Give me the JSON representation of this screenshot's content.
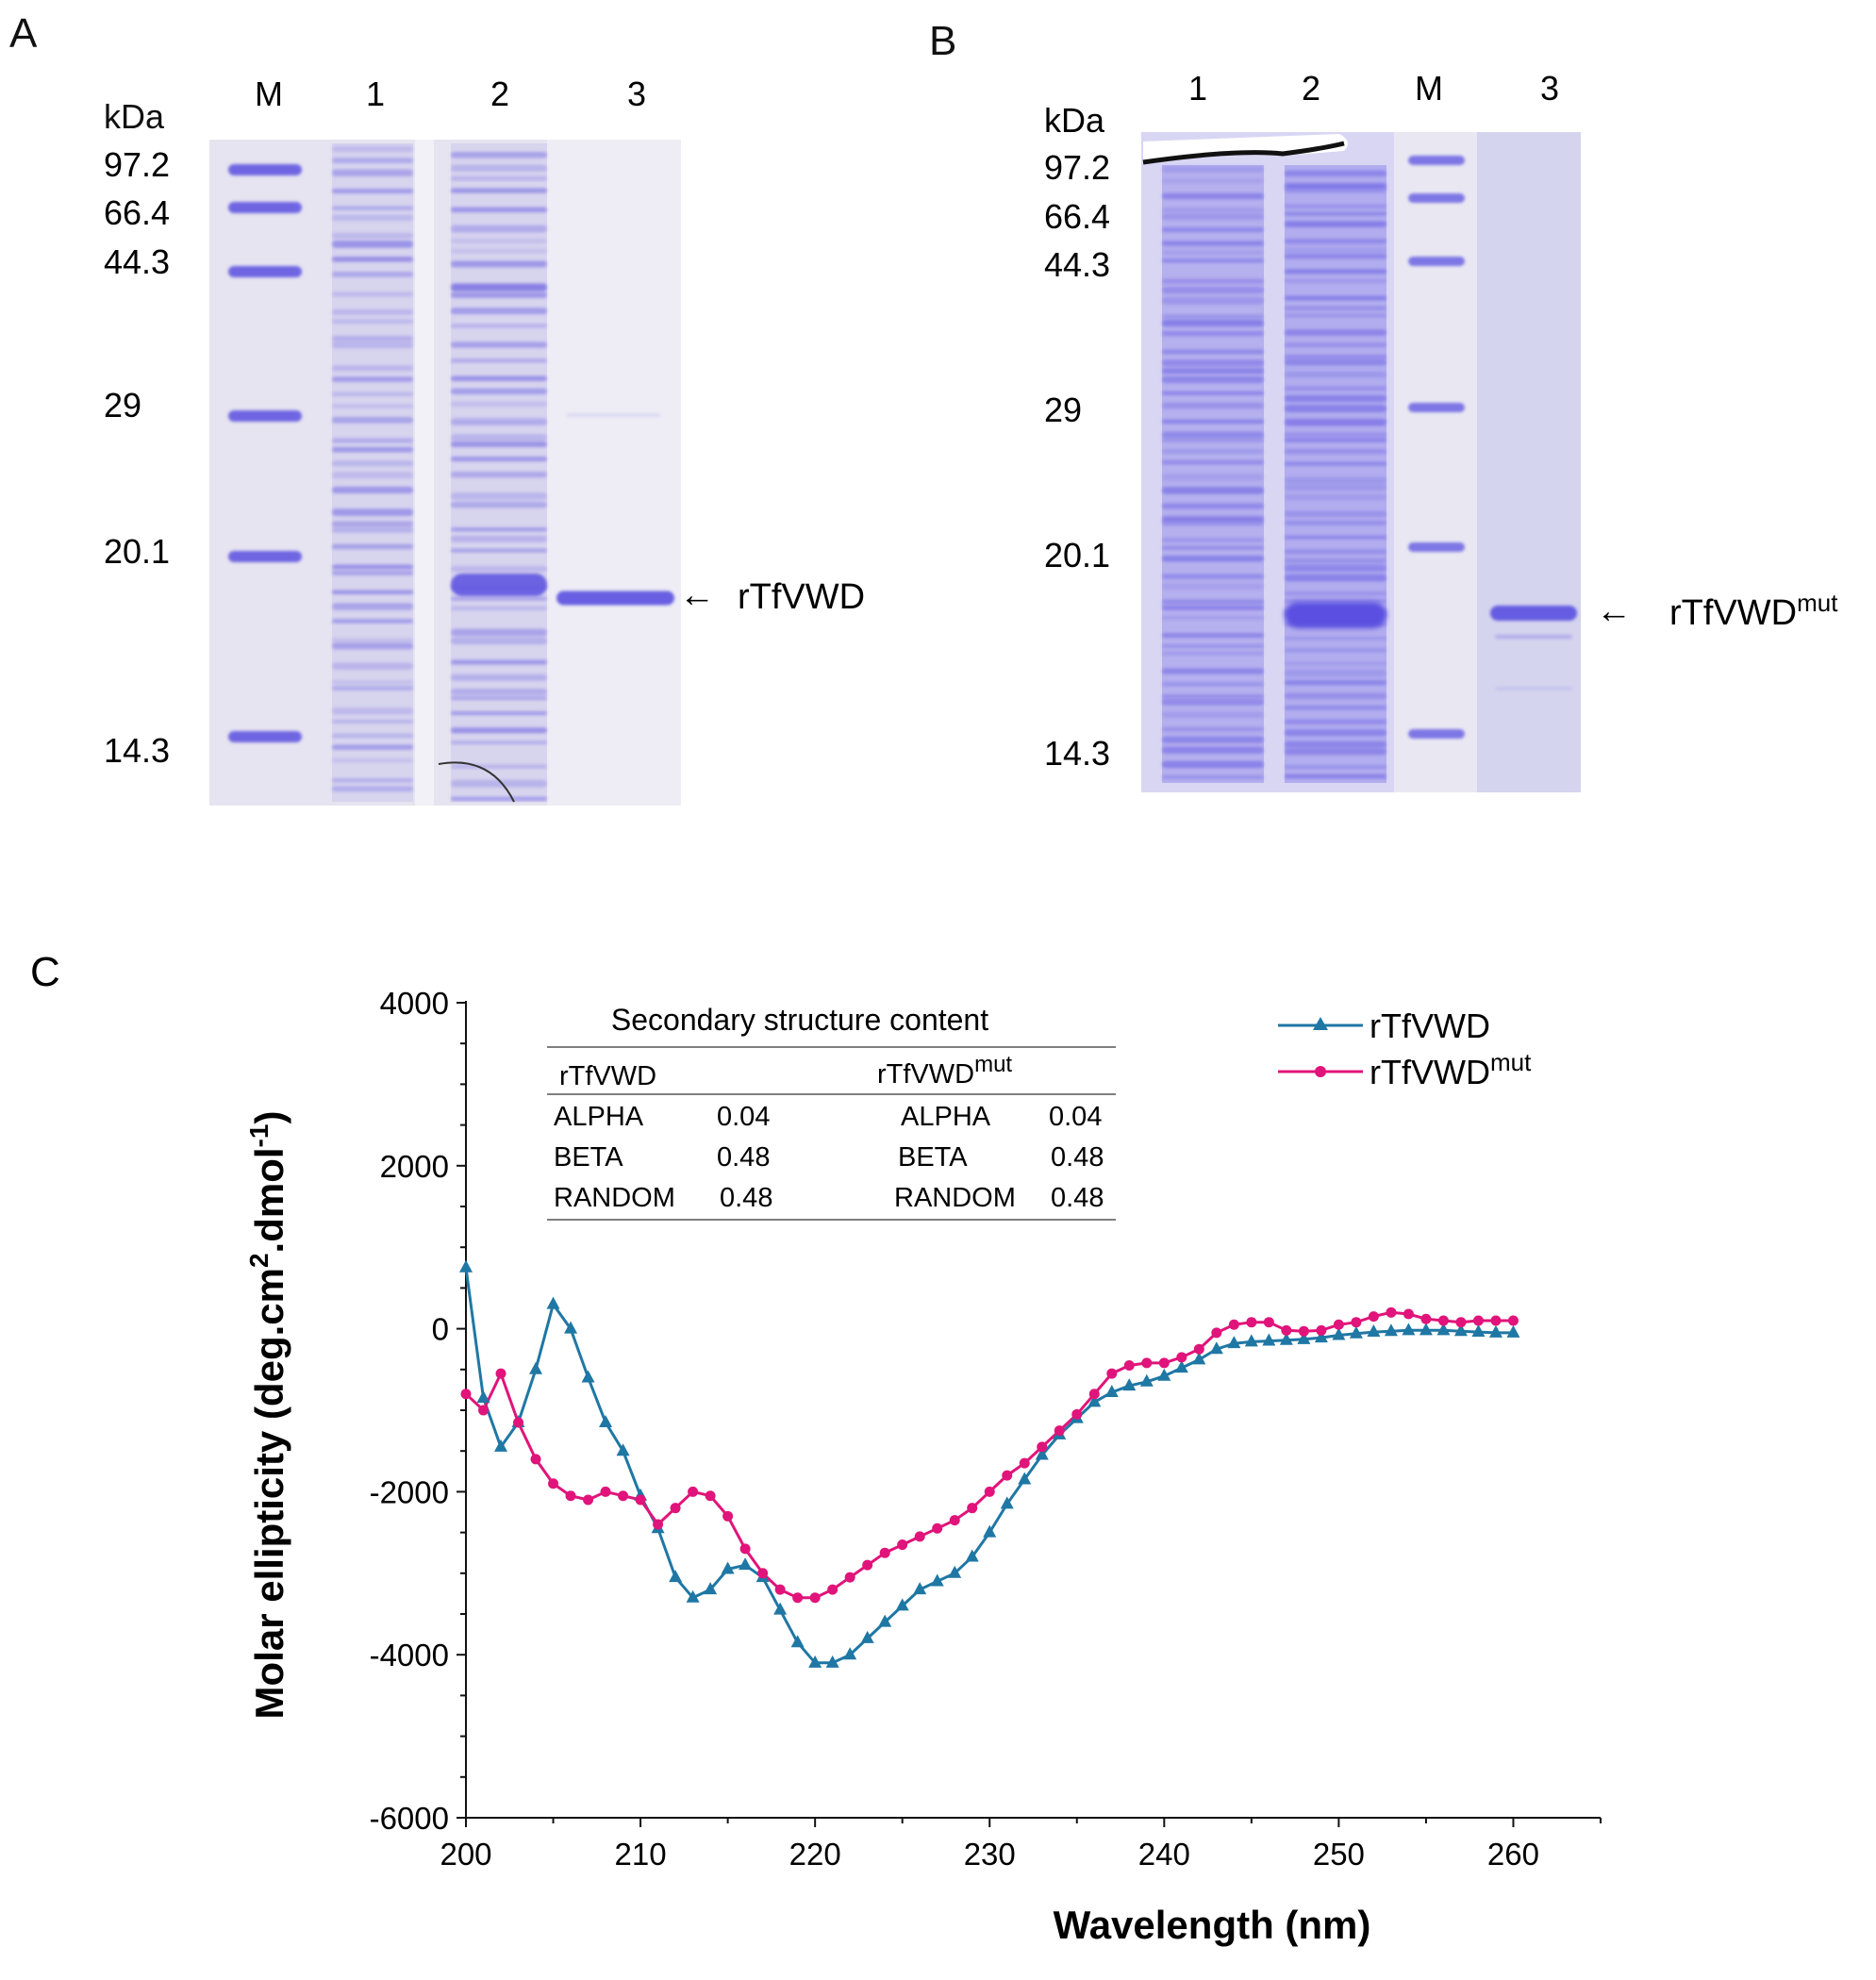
{
  "panels": {
    "A": {
      "letter": "A",
      "kda_label": "kDa",
      "lane_labels": [
        "M",
        "1",
        "2",
        "3"
      ],
      "marker_sizes": [
        "97.2",
        "66.4",
        "44.3",
        "29",
        "20.1",
        "14.3"
      ],
      "band_label": "rTfVWD",
      "arrow_glyph": "←"
    },
    "B": {
      "letter": "B",
      "kda_label": "kDa",
      "lane_labels": [
        "1",
        "2",
        "M",
        "3"
      ],
      "marker_sizes": [
        "97.2",
        "66.4",
        "44.3",
        "29",
        "20.1",
        "14.3"
      ],
      "band_label": "rTfVWD",
      "band_label_sup": "mut",
      "arrow_glyph": "←"
    },
    "C": {
      "letter": "C"
    }
  },
  "inset_table": {
    "title": "Secondary structure content",
    "col_headers": [
      {
        "text": "rTfVWD",
        "sup": ""
      },
      {
        "text": "rTfVWD",
        "sup": "mut"
      }
    ],
    "rows": [
      {
        "label": "ALPHA",
        "v1": "0.04",
        "label2": "ALPHA",
        "v2": "0.04"
      },
      {
        "label": "BETA",
        "v1": "0.48",
        "label2": "BETA",
        "v2": "0.48"
      },
      {
        "label": "RANDOM",
        "v1": "0.48",
        "label2": "RANDOM",
        "v2": "0.48"
      }
    ]
  },
  "colors": {
    "series1": "#1f77a4",
    "series2": "#e0147a",
    "gel_stain": "#5a4fe0",
    "gel_bg": "#e4e2f1",
    "gel_bg_b": "#d6d3f5",
    "axis": "#111111"
  },
  "chart_data": {
    "type": "line",
    "xlabel": "Wavelength (nm)",
    "ylabel": "Molar ellipticity (deg.cm",
    "ylabel_sup1": "2",
    "ylabel_mid": ".dmol",
    "ylabel_sup2": "-1",
    "ylabel_end": ")",
    "xlim": [
      200,
      265
    ],
    "ylim": [
      -6000,
      4000
    ],
    "xticks": [
      200,
      210,
      220,
      230,
      240,
      250,
      260
    ],
    "yticks": [
      -6000,
      -4000,
      -2000,
      0,
      2000,
      4000
    ],
    "grid": false,
    "legend_position": "top-right",
    "x": [
      200,
      201,
      202,
      203,
      204,
      205,
      206,
      207,
      208,
      209,
      210,
      211,
      212,
      213,
      214,
      215,
      216,
      217,
      218,
      219,
      220,
      221,
      222,
      223,
      224,
      225,
      226,
      227,
      228,
      229,
      230,
      231,
      232,
      233,
      234,
      235,
      236,
      237,
      238,
      239,
      240,
      241,
      242,
      243,
      244,
      245,
      246,
      247,
      248,
      249,
      250,
      251,
      252,
      253,
      254,
      255,
      256,
      257,
      258,
      259,
      260
    ],
    "series": [
      {
        "name": "rTfVWD",
        "sup": "",
        "marker": "triangle",
        "values": [
          750,
          -850,
          -1450,
          -1150,
          -500,
          300,
          0,
          -600,
          -1150,
          -1500,
          -2050,
          -2450,
          -3050,
          -3300,
          -3200,
          -2950,
          -2900,
          -3050,
          -3450,
          -3850,
          -4100,
          -4100,
          -4000,
          -3800,
          -3600,
          -3400,
          -3200,
          -3100,
          -3000,
          -2800,
          -2500,
          -2150,
          -1850,
          -1550,
          -1300,
          -1100,
          -900,
          -780,
          -700,
          -650,
          -580,
          -480,
          -380,
          -250,
          -180,
          -160,
          -150,
          -140,
          -130,
          -110,
          -80,
          -60,
          -40,
          -30,
          -20,
          -20,
          -20,
          -30,
          -40,
          -50,
          -50
        ]
      },
      {
        "name": "rTfVWD",
        "sup": "mut",
        "marker": "circle",
        "values": [
          -800,
          -1000,
          -550,
          -1150,
          -1600,
          -1900,
          -2050,
          -2100,
          -2000,
          -2050,
          -2100,
          -2400,
          -2200,
          -2000,
          -2050,
          -2300,
          -2700,
          -3000,
          -3200,
          -3300,
          -3300,
          -3200,
          -3050,
          -2900,
          -2750,
          -2650,
          -2550,
          -2450,
          -2350,
          -2200,
          -2000,
          -1800,
          -1650,
          -1450,
          -1250,
          -1050,
          -800,
          -550,
          -450,
          -420,
          -420,
          -350,
          -250,
          -50,
          50,
          80,
          80,
          -20,
          -30,
          -20,
          50,
          80,
          150,
          200,
          180,
          120,
          100,
          80,
          100,
          100,
          100
        ]
      }
    ]
  }
}
